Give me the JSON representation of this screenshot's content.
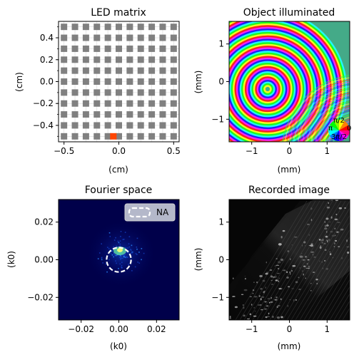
{
  "chart_data": [
    {
      "type": "scatter",
      "title": "LED matrix",
      "xlabel": "(cm)",
      "ylabel": "(cm)",
      "xlim": [
        -0.55,
        0.55
      ],
      "ylim": [
        -0.55,
        0.55
      ],
      "xticks": [
        -0.5,
        0.0,
        0.5
      ],
      "xtick_labels": [
        "−0.5",
        "0.0",
        "0.5"
      ],
      "yticks": [
        -0.4,
        -0.2,
        0.0,
        0.2,
        0.4
      ],
      "ytick_labels": [
        "−0.4",
        "−0.2",
        "0.0",
        "0.2",
        "0.4"
      ],
      "grid_size": 11,
      "led_pitch": 0.1,
      "led_coords": [
        -0.5,
        -0.4,
        -0.3,
        -0.2,
        -0.1,
        0.0,
        0.1,
        0.2,
        0.3,
        0.4,
        0.5
      ],
      "active_led": {
        "x": -0.05,
        "y": -0.5
      },
      "colors": {
        "led": "#808080",
        "active": "#ff4500",
        "grid": "#d8d8d8"
      }
    },
    {
      "type": "heatmap",
      "title": "Object illuminated",
      "xlabel": "(mm)",
      "ylabel": "(mm)",
      "xlim": [
        -1.6,
        1.6
      ],
      "ylim": [
        -1.6,
        1.6
      ],
      "xticks": [
        -1,
        0,
        1
      ],
      "xtick_labels": [
        "−1",
        "0",
        "1"
      ],
      "yticks": [
        -1,
        0,
        1
      ],
      "ytick_labels": [
        "−1",
        "0",
        "1"
      ],
      "colormap": "phase (hsv)",
      "phase_wheel_labels": [
        "π/2",
        "π",
        "0",
        "3π/2"
      ]
    },
    {
      "type": "heatmap",
      "title": "Fourier space",
      "xlabel": "(k0)",
      "ylabel": "(k0)",
      "xlim": [
        -0.032,
        0.032
      ],
      "ylim": [
        -0.032,
        0.032
      ],
      "xticks": [
        -0.02,
        0.0,
        0.02
      ],
      "xtick_labels": [
        "−0.02",
        "0.00",
        "0.02"
      ],
      "yticks": [
        -0.02,
        0.0,
        0.02
      ],
      "ytick_labels": [
        "−0.02",
        "0.00",
        "0.02"
      ],
      "legend": {
        "label": "NA",
        "placement": "top-right"
      },
      "na_circle": {
        "cx": 0.0,
        "cy": 0.0,
        "r": 0.0065
      },
      "colors": {
        "background": "#00004a",
        "circle": "#ffffff"
      }
    },
    {
      "type": "heatmap",
      "title": "Recorded image",
      "xlabel": "(mm)",
      "ylabel": "(mm)",
      "xlim": [
        -1.6,
        1.6
      ],
      "ylim": [
        -1.6,
        1.6
      ],
      "xticks": [
        -1,
        0,
        1
      ],
      "xtick_labels": [
        "−1",
        "0",
        "1"
      ],
      "yticks": [
        -1,
        0,
        1
      ],
      "ytick_labels": [
        "−1",
        "0",
        "1"
      ],
      "colormap": "gray"
    }
  ]
}
